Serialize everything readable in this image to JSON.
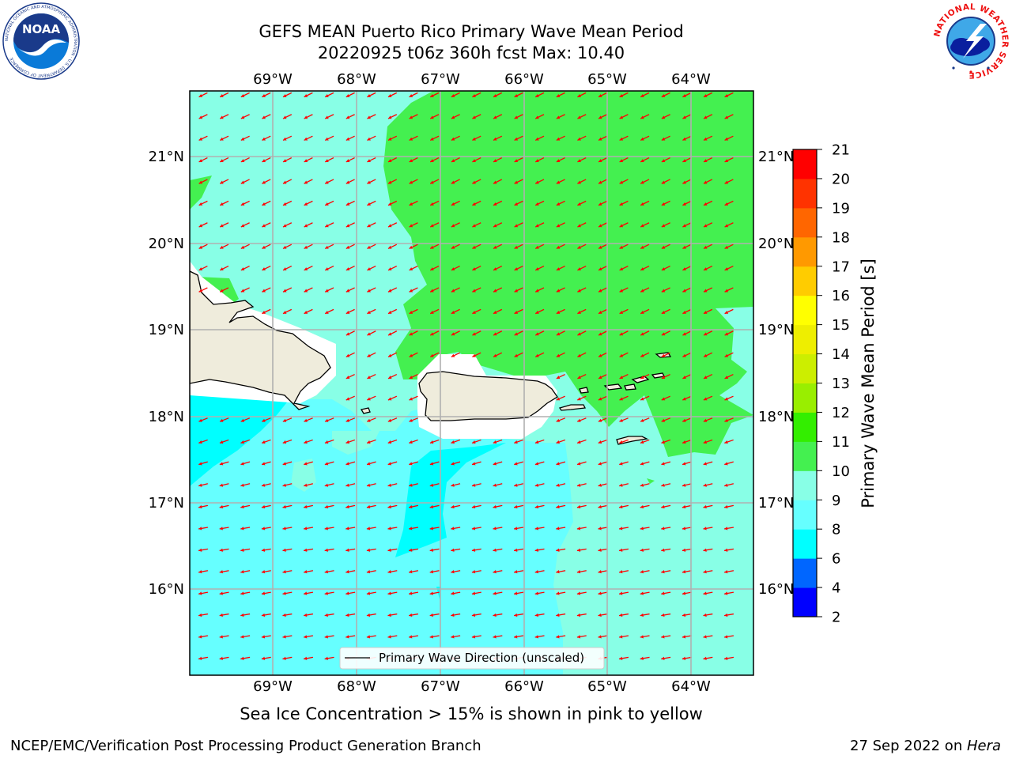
{
  "header": {
    "title_line1": "GEFS MEAN Puerto Rico Primary Wave Mean Period",
    "title_line2": "20220925 t06z 360h fcst   Max: 10.40"
  },
  "logos": {
    "left": {
      "icon": "noaa-logo-icon",
      "text": "NOAA",
      "ring_text": "NATIONAL OCEANIC AND ATMOSPHERIC ADMINISTRATION · U.S. DEPARTMENT OF COMMERCE"
    },
    "right": {
      "icon": "nws-logo-icon",
      "ring_text": "NATIONAL WEATHER SERVICE"
    }
  },
  "map": {
    "lon_ticks_top": [
      "69°W",
      "68°W",
      "67°W",
      "66°W",
      "65°W",
      "64°W"
    ],
    "lon_ticks_bottom": [
      "69°W",
      "68°W",
      "67°W",
      "66°W",
      "65°W",
      "64°W"
    ],
    "lat_ticks_left": [
      "21°N",
      "20°N",
      "19°N",
      "18°N",
      "17°N",
      "16°N"
    ],
    "lat_ticks_right": [
      "21°N",
      "20°N",
      "19°N",
      "18°N",
      "17°N",
      "16°N"
    ],
    "legend_label": "Primary Wave Direction (unscaled)",
    "colors": {
      "land": "#efecdc",
      "coast": "#000000",
      "grid": "#b0b0b0",
      "arrow": "#ff0000",
      "period_8_9": "#66ffff",
      "period_9_10": "#88ffe6",
      "period_10_11": "#44f050",
      "period_6_8": "#00ffff"
    }
  },
  "colorbar": {
    "label": "Primary Wave Mean Period [s]",
    "ticks": [
      "2",
      "4",
      "6",
      "8",
      "9",
      "10",
      "11",
      "12",
      "13",
      "14",
      "15",
      "16",
      "17",
      "18",
      "19",
      "20",
      "21"
    ],
    "colors": [
      "#0000ff",
      "#0066ff",
      "#00ffff",
      "#66ffff",
      "#88ffe6",
      "#44f050",
      "#33ee00",
      "#99ee00",
      "#ccee00",
      "#eeee00",
      "#ffff00",
      "#ffcc00",
      "#ff9900",
      "#ff6600",
      "#ff3300",
      "#ff0000"
    ]
  },
  "caption": "Sea Ice Concentration > 15% is shown in pink to yellow",
  "footer": {
    "left": "NCEP/EMC/Verification Post Processing Product Generation Branch",
    "right_date": "27 Sep 2022 on ",
    "right_host": "Hera"
  }
}
